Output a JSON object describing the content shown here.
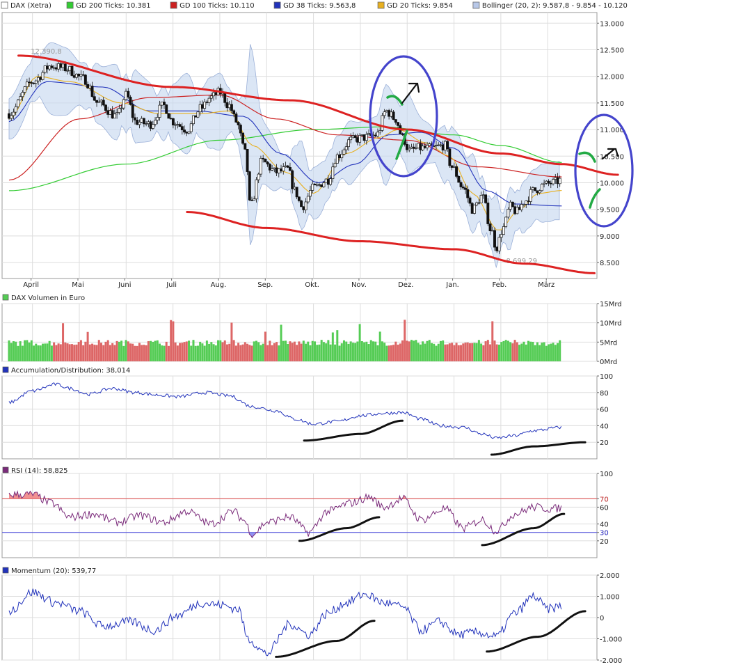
{
  "legend_main": [
    {
      "label": "DAX (Xetra)",
      "color": "#ffffff"
    },
    {
      "label": "GD 200 Ticks: 10.381",
      "color": "#33cc33"
    },
    {
      "label": "GD 100 Ticks: 10.110",
      "color": "#cc2222"
    },
    {
      "label": "GD 38 Ticks: 9.563,8",
      "color": "#2233bb"
    },
    {
      "label": "GD 20 Ticks: 9.854",
      "color": "#e8b020"
    },
    {
      "label": "Bollinger (20, 2): 9.587,8 - 9.854 - 10.120",
      "color": "#b8c8e8"
    }
  ],
  "months": [
    "April",
    "Mai",
    "Juni",
    "Juli",
    "Aug.",
    "Sep.",
    "Okt.",
    "Nov.",
    "Dez.",
    "Jan.",
    "Feb.",
    "März"
  ],
  "colors": {
    "up": "#55cc55",
    "down": "#dd6666",
    "candle_up": "#ffffff",
    "candle_down": "#111111",
    "gd200": "#33cc33",
    "gd100": "#cc2222",
    "gd38": "#2233bb",
    "gd20": "#e8b020",
    "bollinger": "#c8d8f0",
    "grid": "#dddddd",
    "axis": "#999999",
    "drawn_red": "#dd2222",
    "drawn_blue": "#4444cc",
    "drawn_green": "#22aa44",
    "drawn_black": "#111111"
  },
  "chart_data": [
    {
      "type": "line",
      "panel": "price",
      "title": "DAX (Xetra)",
      "ylim": [
        8200,
        13200
      ],
      "y_ticks": [
        "13.000",
        "12.500",
        "12.000",
        "11.500",
        "11.000",
        "10.500",
        "10.000",
        "9.500",
        "9.000",
        "8.500"
      ],
      "y_tick_values": [
        13000,
        12500,
        12000,
        11500,
        11000,
        10500,
        10000,
        9500,
        9000,
        8500
      ],
      "annotations": [
        {
          "text": "12.390,8",
          "value": 12390.8,
          "month_index": 0.2
        },
        {
          "text": "8.699,29",
          "value": 8699.29,
          "month_index": 10.35
        }
      ],
      "anchors_close": [
        [
          0,
          11300
        ],
        [
          0.5,
          11900
        ],
        [
          0.9,
          12200
        ],
        [
          1.2,
          12150
        ],
        [
          1.6,
          11950
        ],
        [
          1.9,
          11500
        ],
        [
          2.3,
          11250
        ],
        [
          2.5,
          11650
        ],
        [
          2.7,
          11150
        ],
        [
          3.0,
          11100
        ],
        [
          3.3,
          11450
        ],
        [
          3.5,
          11150
        ],
        [
          3.8,
          11000
        ],
        [
          4.1,
          11400
        ],
        [
          4.3,
          11600
        ],
        [
          4.5,
          11700
        ],
        [
          4.7,
          11450
        ],
        [
          4.85,
          11150
        ],
        [
          5.05,
          10550
        ],
        [
          5.15,
          9550
        ],
        [
          5.4,
          10400
        ],
        [
          5.7,
          10200
        ],
        [
          5.95,
          10250
        ],
        [
          6.1,
          9850
        ],
        [
          6.25,
          9550
        ],
        [
          6.5,
          9900
        ],
        [
          6.8,
          10050
        ],
        [
          7.0,
          10500
        ],
        [
          7.3,
          10800
        ],
        [
          7.6,
          10850
        ],
        [
          7.85,
          10900
        ],
        [
          8.05,
          11350
        ],
        [
          8.25,
          11200
        ],
        [
          8.4,
          10850
        ],
        [
          8.55,
          10600
        ],
        [
          8.75,
          10650
        ],
        [
          9.0,
          10650
        ],
        [
          9.3,
          10700
        ],
        [
          9.45,
          10300
        ],
        [
          9.7,
          9900
        ],
        [
          9.9,
          9500
        ],
        [
          10.1,
          9750
        ],
        [
          10.3,
          9100
        ],
        [
          10.4,
          8780
        ],
        [
          10.55,
          9150
        ],
        [
          10.7,
          9550
        ],
        [
          10.85,
          9450
        ],
        [
          11.0,
          9650
        ],
        [
          11.2,
          9850
        ],
        [
          11.4,
          9950
        ],
        [
          11.6,
          10000
        ],
        [
          11.8,
          10050
        ]
      ],
      "gd200_anchors": [
        [
          0,
          9850
        ],
        [
          2.5,
          10350
        ],
        [
          4.5,
          10800
        ],
        [
          6.5,
          11000
        ],
        [
          8.0,
          11050
        ],
        [
          9.5,
          10900
        ],
        [
          10.5,
          10700
        ],
        [
          11.8,
          10381
        ]
      ],
      "gd100_anchors": [
        [
          0,
          10050
        ],
        [
          1.5,
          11200
        ],
        [
          3.0,
          11600
        ],
        [
          4.5,
          11650
        ],
        [
          5.7,
          11200
        ],
        [
          7.0,
          10900
        ],
        [
          8.5,
          10800
        ],
        [
          10.0,
          10300
        ],
        [
          11.8,
          10110
        ]
      ],
      "gd38_anchors": [
        [
          0,
          11150
        ],
        [
          0.8,
          11900
        ],
        [
          2.0,
          11800
        ],
        [
          3.0,
          11350
        ],
        [
          4.0,
          11350
        ],
        [
          5.0,
          11250
        ],
        [
          5.8,
          10550
        ],
        [
          6.6,
          10000
        ],
        [
          7.4,
          10350
        ],
        [
          8.1,
          10900
        ],
        [
          8.8,
          10950
        ],
        [
          9.5,
          10650
        ],
        [
          10.2,
          9850
        ],
        [
          10.8,
          9600
        ],
        [
          11.8,
          9563.8
        ]
      ],
      "gd20_anchors": [
        [
          0,
          11200
        ],
        [
          0.6,
          12000
        ],
        [
          1.3,
          11900
        ],
        [
          2.4,
          11500
        ],
        [
          3.2,
          11300
        ],
        [
          4.1,
          11300
        ],
        [
          4.7,
          11350
        ],
        [
          5.2,
          10700
        ],
        [
          5.9,
          10200
        ],
        [
          6.5,
          9800
        ],
        [
          7.2,
          10550
        ],
        [
          7.9,
          10850
        ],
        [
          8.3,
          11000
        ],
        [
          8.9,
          10750
        ],
        [
          9.4,
          10500
        ],
        [
          9.9,
          9800
        ],
        [
          10.45,
          9100
        ],
        [
          10.9,
          9500
        ],
        [
          11.3,
          9800
        ],
        [
          11.8,
          9854
        ]
      ],
      "drawn_lines": {
        "upper_channel": [
          [
            0.2,
            12390
          ],
          [
            3.5,
            11800
          ],
          [
            6.0,
            11550
          ],
          [
            8.5,
            11000
          ],
          [
            10.5,
            10550
          ],
          [
            11.8,
            10350
          ],
          [
            13.0,
            10150
          ]
        ],
        "lower_channel": [
          [
            3.8,
            9450
          ],
          [
            5.5,
            9150
          ],
          [
            7.5,
            8900
          ],
          [
            9.5,
            8750
          ],
          [
            11.0,
            8480
          ],
          [
            12.5,
            8300
          ]
        ]
      }
    },
    {
      "type": "bar",
      "panel": "volume",
      "title": "DAX Volumen in Euro",
      "y_ticks": [
        "15Mrd",
        "10Mrd",
        "5Mrd",
        "0Mrd"
      ],
      "y_tick_values": [
        15,
        10,
        5,
        0
      ],
      "ylim": [
        0,
        15
      ],
      "base_level": 4
    },
    {
      "type": "line",
      "panel": "accumulation",
      "title": "Accumulation/Distribution: 38,014",
      "y_ticks": [
        "100",
        "80",
        "60",
        "40",
        "20"
      ],
      "y_tick_values": [
        100,
        80,
        60,
        40,
        20
      ],
      "ylim": [
        0,
        100
      ],
      "anchors": [
        [
          0,
          68
        ],
        [
          0.5,
          82
        ],
        [
          1.0,
          90
        ],
        [
          1.3,
          85
        ],
        [
          1.7,
          78
        ],
        [
          2.2,
          85
        ],
        [
          2.7,
          80
        ],
        [
          3.2,
          77
        ],
        [
          3.6,
          75
        ],
        [
          4.2,
          80
        ],
        [
          4.7,
          76
        ],
        [
          5.2,
          63
        ],
        [
          5.7,
          58
        ],
        [
          6.1,
          48
        ],
        [
          6.5,
          42
        ],
        [
          7.0,
          45
        ],
        [
          7.5,
          52
        ],
        [
          8.0,
          55
        ],
        [
          8.4,
          56
        ],
        [
          8.8,
          48
        ],
        [
          9.2,
          40
        ],
        [
          9.7,
          38
        ],
        [
          10.1,
          30
        ],
        [
          10.4,
          25
        ],
        [
          10.8,
          28
        ],
        [
          11.2,
          34
        ],
        [
          11.8,
          38
        ]
      ],
      "drawn_lines": {
        "trend_1": [
          [
            6.3,
            22
          ],
          [
            7.5,
            30
          ],
          [
            8.4,
            46
          ]
        ],
        "trend_2": [
          [
            10.3,
            5
          ],
          [
            11.2,
            15
          ],
          [
            12.3,
            20
          ]
        ]
      }
    },
    {
      "type": "line",
      "panel": "rsi",
      "title": "RSI (14): 58,825",
      "y_ticks": [
        "100",
        "70",
        "60",
        "40",
        "30",
        "20"
      ],
      "y_tick_values": [
        100,
        70,
        60,
        40,
        30,
        20
      ],
      "ylim": [
        0,
        100
      ],
      "reference_lines": [
        {
          "value": 70,
          "color": "#dd4444",
          "label": "70"
        },
        {
          "value": 30,
          "color": "#4444dd",
          "label": "30"
        }
      ],
      "anchors": [
        [
          0,
          75
        ],
        [
          0.5,
          75
        ],
        [
          0.9,
          65
        ],
        [
          1.3,
          48
        ],
        [
          1.8,
          52
        ],
        [
          2.3,
          42
        ],
        [
          2.8,
          50
        ],
        [
          3.3,
          42
        ],
        [
          3.8,
          55
        ],
        [
          4.3,
          40
        ],
        [
          4.8,
          55
        ],
        [
          5.0,
          45
        ],
        [
          5.2,
          28
        ],
        [
          5.5,
          42
        ],
        [
          6.0,
          48
        ],
        [
          6.4,
          30
        ],
        [
          6.8,
          55
        ],
        [
          7.3,
          65
        ],
        [
          7.7,
          72
        ],
        [
          8.0,
          60
        ],
        [
          8.4,
          70
        ],
        [
          8.8,
          45
        ],
        [
          9.3,
          58
        ],
        [
          9.7,
          35
        ],
        [
          10.1,
          45
        ],
        [
          10.4,
          32
        ],
        [
          10.8,
          52
        ],
        [
          11.2,
          60
        ],
        [
          11.6,
          58
        ],
        [
          11.8,
          59
        ]
      ],
      "drawn_lines": {
        "trend_1": [
          [
            6.2,
            20
          ],
          [
            7.2,
            35
          ],
          [
            7.9,
            48
          ]
        ],
        "trend_2": [
          [
            10.1,
            15
          ],
          [
            11.2,
            35
          ],
          [
            11.85,
            52
          ]
        ]
      }
    },
    {
      "type": "line",
      "panel": "momentum",
      "title": "Momentum (20): 539,77",
      "y_ticks": [
        "2.000",
        "1.000",
        "0",
        "-1.000",
        "-2.000"
      ],
      "y_tick_values": [
        2000,
        1000,
        0,
        -1000,
        -2000
      ],
      "ylim": [
        -2000,
        2000
      ],
      "anchors": [
        [
          0,
          300
        ],
        [
          0.5,
          1200
        ],
        [
          1.0,
          700
        ],
        [
          1.5,
          300
        ],
        [
          2.0,
          -400
        ],
        [
          2.6,
          -200
        ],
        [
          3.1,
          -600
        ],
        [
          3.6,
          100
        ],
        [
          4.1,
          700
        ],
        [
          4.5,
          600
        ],
        [
          4.9,
          400
        ],
        [
          5.1,
          -1000
        ],
        [
          5.5,
          -1700
        ],
        [
          6.0,
          -300
        ],
        [
          6.4,
          -800
        ],
        [
          6.8,
          200
        ],
        [
          7.2,
          700
        ],
        [
          7.6,
          1100
        ],
        [
          8.0,
          700
        ],
        [
          8.4,
          500
        ],
        [
          8.8,
          -600
        ],
        [
          9.2,
          -200
        ],
        [
          9.6,
          -800
        ],
        [
          10.0,
          -700
        ],
        [
          10.4,
          -900
        ],
        [
          10.8,
          200
        ],
        [
          11.2,
          1000
        ],
        [
          11.5,
          400
        ],
        [
          11.8,
          540
        ]
      ],
      "drawn_lines": {
        "trend_1": [
          [
            5.7,
            -1850
          ],
          [
            7.0,
            -1100
          ],
          [
            7.8,
            -150
          ]
        ],
        "trend_2": [
          [
            10.2,
            -1600
          ],
          [
            11.3,
            -900
          ],
          [
            12.3,
            300
          ]
        ]
      }
    }
  ]
}
